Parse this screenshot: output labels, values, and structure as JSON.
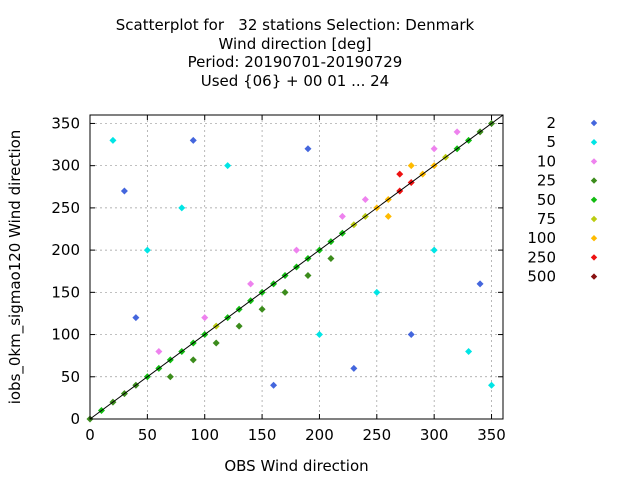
{
  "chart_data": {
    "type": "scatter",
    "title_lines": [
      "Scatterplot for   32 stations Selection: Denmark",
      "Wind direction [deg]",
      "Period: 20190701-20190729",
      "Used {06} + 00 01 ... 24"
    ],
    "xlabel": "OBS Wind direction",
    "ylabel": "iobs_0km_sigmao120 Wind direction",
    "xlim": [
      0,
      360
    ],
    "ylim": [
      0,
      360
    ],
    "xticks": [
      0,
      50,
      100,
      150,
      200,
      250,
      300,
      350
    ],
    "yticks": [
      0,
      50,
      100,
      150,
      200,
      250,
      300,
      350
    ],
    "grid": true,
    "diagonal_line": true,
    "legend_position": "right",
    "legend": [
      {
        "label": "2",
        "color": "#4466dd"
      },
      {
        "label": "5",
        "color": "#00e5e5"
      },
      {
        "label": "10",
        "color": "#ee82ee"
      },
      {
        "label": "25",
        "color": "#3c8c1c"
      },
      {
        "label": "50",
        "color": "#11bb11"
      },
      {
        "label": "75",
        "color": "#bbcc11"
      },
      {
        "label": "100",
        "color": "#ffbb00"
      },
      {
        "label": "250",
        "color": "#ee1111"
      },
      {
        "label": "500",
        "color": "#881111"
      }
    ],
    "bin_size_deg": 10,
    "points": [
      {
        "x": 0,
        "y": 0,
        "count": 25
      },
      {
        "x": 10,
        "y": 10,
        "count": 50
      },
      {
        "x": 20,
        "y": 20,
        "count": 25
      },
      {
        "x": 30,
        "y": 30,
        "count": 25
      },
      {
        "x": 40,
        "y": 40,
        "count": 25
      },
      {
        "x": 50,
        "y": 50,
        "count": 50
      },
      {
        "x": 60,
        "y": 60,
        "count": 50
      },
      {
        "x": 70,
        "y": 70,
        "count": 50
      },
      {
        "x": 80,
        "y": 80,
        "count": 50
      },
      {
        "x": 90,
        "y": 90,
        "count": 50
      },
      {
        "x": 100,
        "y": 100,
        "count": 50
      },
      {
        "x": 110,
        "y": 110,
        "count": 75
      },
      {
        "x": 120,
        "y": 120,
        "count": 50
      },
      {
        "x": 130,
        "y": 130,
        "count": 50
      },
      {
        "x": 140,
        "y": 140,
        "count": 50
      },
      {
        "x": 150,
        "y": 150,
        "count": 50
      },
      {
        "x": 160,
        "y": 160,
        "count": 50
      },
      {
        "x": 170,
        "y": 170,
        "count": 50
      },
      {
        "x": 180,
        "y": 180,
        "count": 50
      },
      {
        "x": 190,
        "y": 190,
        "count": 50
      },
      {
        "x": 200,
        "y": 200,
        "count": 50
      },
      {
        "x": 210,
        "y": 210,
        "count": 50
      },
      {
        "x": 220,
        "y": 220,
        "count": 50
      },
      {
        "x": 230,
        "y": 230,
        "count": 75
      },
      {
        "x": 240,
        "y": 240,
        "count": 75
      },
      {
        "x": 250,
        "y": 250,
        "count": 100
      },
      {
        "x": 260,
        "y": 260,
        "count": 100
      },
      {
        "x": 270,
        "y": 270,
        "count": 250
      },
      {
        "x": 280,
        "y": 280,
        "count": 250
      },
      {
        "x": 290,
        "y": 290,
        "count": 100
      },
      {
        "x": 300,
        "y": 300,
        "count": 100
      },
      {
        "x": 310,
        "y": 310,
        "count": 75
      },
      {
        "x": 320,
        "y": 320,
        "count": 50
      },
      {
        "x": 330,
        "y": 330,
        "count": 50
      },
      {
        "x": 340,
        "y": 340,
        "count": 25
      },
      {
        "x": 350,
        "y": 350,
        "count": 25
      },
      {
        "x": 270,
        "y": 290,
        "count": 250
      },
      {
        "x": 280,
        "y": 300,
        "count": 100
      },
      {
        "x": 260,
        "y": 240,
        "count": 100
      },
      {
        "x": 210,
        "y": 190,
        "count": 25
      },
      {
        "x": 190,
        "y": 170,
        "count": 25
      },
      {
        "x": 170,
        "y": 150,
        "count": 25
      },
      {
        "x": 150,
        "y": 130,
        "count": 25
      },
      {
        "x": 130,
        "y": 110,
        "count": 25
      },
      {
        "x": 110,
        "y": 90,
        "count": 25
      },
      {
        "x": 90,
        "y": 70,
        "count": 25
      },
      {
        "x": 70,
        "y": 50,
        "count": 25
      },
      {
        "x": 60,
        "y": 80,
        "count": 10
      },
      {
        "x": 100,
        "y": 120,
        "count": 10
      },
      {
        "x": 140,
        "y": 160,
        "count": 10
      },
      {
        "x": 180,
        "y": 200,
        "count": 10
      },
      {
        "x": 220,
        "y": 240,
        "count": 10
      },
      {
        "x": 240,
        "y": 260,
        "count": 10
      },
      {
        "x": 300,
        "y": 320,
        "count": 10
      },
      {
        "x": 320,
        "y": 340,
        "count": 10
      },
      {
        "x": 50,
        "y": 200,
        "count": 5
      },
      {
        "x": 80,
        "y": 250,
        "count": 5
      },
      {
        "x": 120,
        "y": 300,
        "count": 5
      },
      {
        "x": 200,
        "y": 100,
        "count": 5
      },
      {
        "x": 250,
        "y": 150,
        "count": 5
      },
      {
        "x": 300,
        "y": 200,
        "count": 5
      },
      {
        "x": 330,
        "y": 80,
        "count": 5
      },
      {
        "x": 20,
        "y": 330,
        "count": 5
      },
      {
        "x": 350,
        "y": 40,
        "count": 5
      },
      {
        "x": 40,
        "y": 120,
        "count": 2
      },
      {
        "x": 90,
        "y": 330,
        "count": 2
      },
      {
        "x": 160,
        "y": 40,
        "count": 2
      },
      {
        "x": 230,
        "y": 60,
        "count": 2
      },
      {
        "x": 280,
        "y": 100,
        "count": 2
      },
      {
        "x": 340,
        "y": 160,
        "count": 2
      },
      {
        "x": 30,
        "y": 270,
        "count": 2
      },
      {
        "x": 190,
        "y": 320,
        "count": 2
      }
    ]
  }
}
